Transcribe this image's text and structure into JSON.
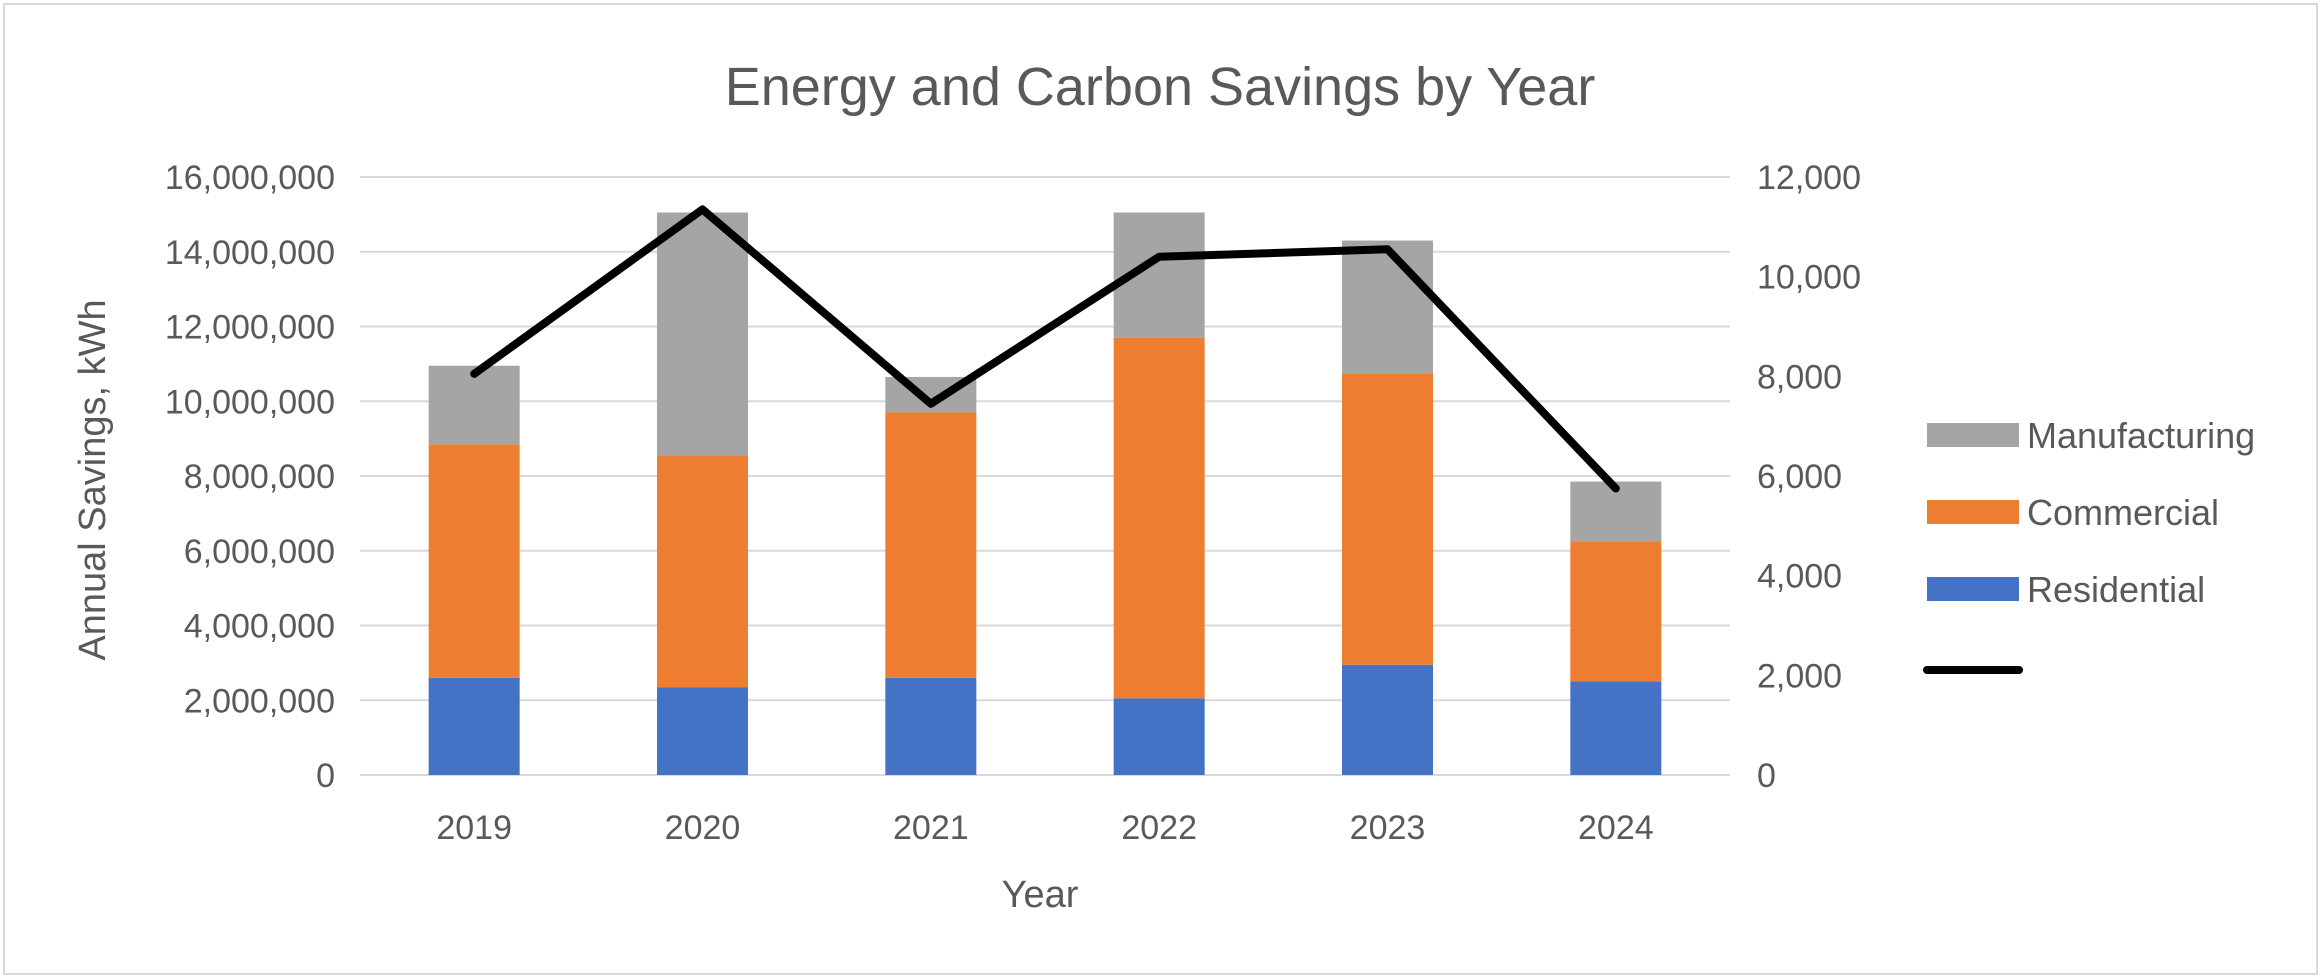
{
  "chart_data": {
    "type": "bar",
    "stacked": true,
    "title": "Energy and Carbon Savings by Year",
    "xlabel": "Year",
    "ylabel": "Annual Savings, kWh",
    "y2label": "",
    "ylim": [
      0,
      16000000
    ],
    "y2lim": [
      0,
      12000
    ],
    "grid": true,
    "legend_position": "right",
    "categories": [
      "2019",
      "2020",
      "2021",
      "2022",
      "2023",
      "2024"
    ],
    "y_ticks": [
      "0",
      "2,000,000",
      "4,000,000",
      "6,000,000",
      "8,000,000",
      "10,000,000",
      "12,000,000",
      "14,000,000",
      "16,000,000"
    ],
    "y2_ticks": [
      "0",
      "2,000",
      "4,000",
      "6,000",
      "8,000",
      "10,000",
      "12,000"
    ],
    "series": [
      {
        "name": "Residential",
        "axis": "left",
        "kind": "bar",
        "color": "#4472c4",
        "values": [
          2600000,
          2350000,
          2600000,
          2050000,
          2950000,
          2500000
        ]
      },
      {
        "name": "Commercial",
        "axis": "left",
        "kind": "bar",
        "color": "#ed7d31",
        "values": [
          6250000,
          6200000,
          7100000,
          9650000,
          7800000,
          3750000
        ]
      },
      {
        "name": "Manufacturing",
        "axis": "left",
        "kind": "bar",
        "color": "#a5a5a5",
        "values": [
          2100000,
          6500000,
          950000,
          3350000,
          3550000,
          1600000
        ]
      },
      {
        "name": "",
        "axis": "right",
        "kind": "line",
        "color": "#000000",
        "values": [
          8050,
          11350,
          7450,
          10400,
          10550,
          5750
        ]
      }
    ],
    "legend": [
      {
        "label": "Manufacturing",
        "color": "#a5a5a5",
        "shape": "box"
      },
      {
        "label": "Commercial",
        "color": "#ed7d31",
        "shape": "box"
      },
      {
        "label": "Residential",
        "color": "#4472c4",
        "shape": "box"
      },
      {
        "label": "",
        "color": "#000000",
        "shape": "line"
      }
    ]
  }
}
